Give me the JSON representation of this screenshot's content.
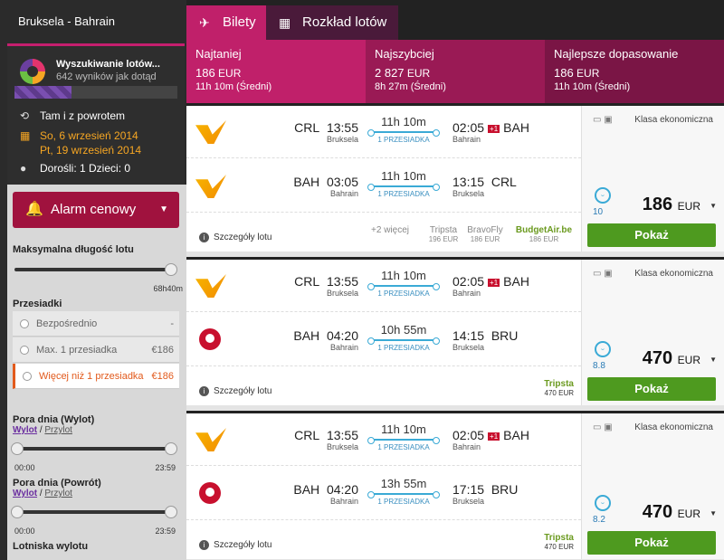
{
  "sidebar": {
    "route": "Bruksela - Bahrain",
    "search_title": "Wyszukiwanie lotów...",
    "search_sub": "642 wyników jak dotąd",
    "progress": 0.35,
    "trip_type": "Tam i z powrotem",
    "date_out": "So, 6 wrzesień 2014",
    "date_back": "Pt, 19 wrzesień 2014",
    "pax": "Dorośli: 1 Dzieci: 0",
    "alarm": "Alarm cenowy",
    "max_len_label": "Maksymalna długość lotu",
    "max_len_val": "68h40m",
    "stops_label": "Przesiadki",
    "stops": [
      {
        "label": "Bezpośrednio",
        "price": "-"
      },
      {
        "label": "Max. 1 przesiadka",
        "price": "€186"
      },
      {
        "label": "Więcej niż 1 przesiadka",
        "price": "€186"
      }
    ],
    "dep_label": "Pora dnia (Wylot)",
    "ret_label": "Pora dnia (Powrót)",
    "link_a": "Wylot",
    "link_sep": " / ",
    "link_b": "Przylot",
    "t0": "00:00",
    "t1": "23:59",
    "airports_label": "Lotniska wylotu"
  },
  "tabs": [
    "Bilety",
    "Rozkład lotów"
  ],
  "sort": [
    {
      "title": "Najtaniej",
      "price": "186",
      "cur": "EUR",
      "dur": "11h 10m (Średni)"
    },
    {
      "title": "Najszybciej",
      "price": "2 827",
      "cur": "EUR",
      "dur": "8h 27m (Średni)"
    },
    {
      "title": "Najlepsze dopasowanie",
      "price": "186",
      "cur": "EUR",
      "dur": "11h 10m (Średni)"
    }
  ],
  "common": {
    "details": "Szczegóły lotu",
    "cls": "Klasa ekonomiczna",
    "book": "Pokaż",
    "plus1": "+1",
    "stop": "1 PRZESIADKA"
  },
  "results": [
    {
      "legs": [
        {
          "from": "CRL",
          "dep": "13:55",
          "from_city": "Bruksela",
          "dur": "11h 10m",
          "arr": "02:05",
          "to": "BAH",
          "to_city": "Bahrain",
          "plus": true,
          "logo": "yellow"
        },
        {
          "from": "BAH",
          "dep": "03:05",
          "from_city": "Bahrain",
          "dur": "11h 10m",
          "arr": "13:15",
          "to": "CRL",
          "to_city": "Bruksela",
          "plus": false,
          "logo": "yellow"
        }
      ],
      "score": "10",
      "price": "186",
      "cur": "EUR",
      "more": "+2 więcej",
      "agents": [
        {
          "name": "Tripsta",
          "price": "196 EUR"
        },
        {
          "name": "BravoFly",
          "price": "186 EUR"
        },
        {
          "name": "BudgetAir.be",
          "price": "186 EUR"
        }
      ]
    },
    {
      "legs": [
        {
          "from": "CRL",
          "dep": "13:55",
          "from_city": "Bruksela",
          "dur": "11h 10m",
          "arr": "02:05",
          "to": "BAH",
          "to_city": "Bahrain",
          "plus": true,
          "logo": "yellow"
        },
        {
          "from": "BAH",
          "dep": "04:20",
          "from_city": "Bahrain",
          "dur": "10h 55m",
          "arr": "14:15",
          "to": "BRU",
          "to_city": "Bruksela",
          "plus": false,
          "logo": "red"
        }
      ],
      "score": "8.8",
      "price": "470",
      "cur": "EUR",
      "agents": [
        {
          "name": "Tripsta",
          "price": "470 EUR"
        }
      ]
    },
    {
      "legs": [
        {
          "from": "CRL",
          "dep": "13:55",
          "from_city": "Bruksela",
          "dur": "11h 10m",
          "arr": "02:05",
          "to": "BAH",
          "to_city": "Bahrain",
          "plus": true,
          "logo": "yellow"
        },
        {
          "from": "BAH",
          "dep": "04:20",
          "from_city": "Bahrain",
          "dur": "13h 55m",
          "arr": "17:15",
          "to": "BRU",
          "to_city": "Bruksela",
          "plus": false,
          "logo": "red"
        }
      ],
      "score": "8.2",
      "price": "470",
      "cur": "EUR",
      "agents": [
        {
          "name": "Tripsta",
          "price": "470 EUR"
        }
      ]
    }
  ]
}
